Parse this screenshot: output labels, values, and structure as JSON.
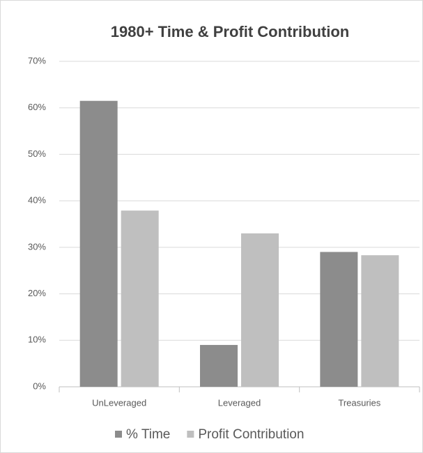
{
  "chart_data": {
    "type": "bar",
    "title": "1980+ Time & Profit Contribution",
    "categories": [
      "UnLeveraged",
      "Leveraged",
      "Treasuries"
    ],
    "series": [
      {
        "name": "% Time",
        "color": "#8c8c8c",
        "values": [
          61.5,
          9.0,
          29.0
        ]
      },
      {
        "name": "Profit Contribution",
        "color": "#bfbfbf",
        "values": [
          37.9,
          33.0,
          28.3
        ]
      }
    ],
    "ylim": [
      0,
      70
    ],
    "yticks": [
      {
        "value": 0,
        "label": "0%"
      },
      {
        "value": 10,
        "label": "10%"
      },
      {
        "value": 20,
        "label": "20%"
      },
      {
        "value": 30,
        "label": "30%"
      },
      {
        "value": 40,
        "label": "40%"
      },
      {
        "value": 50,
        "label": "50%"
      },
      {
        "value": 60,
        "label": "60%"
      },
      {
        "value": 70,
        "label": "70%"
      }
    ],
    "grid": true,
    "legend": "bottom"
  }
}
